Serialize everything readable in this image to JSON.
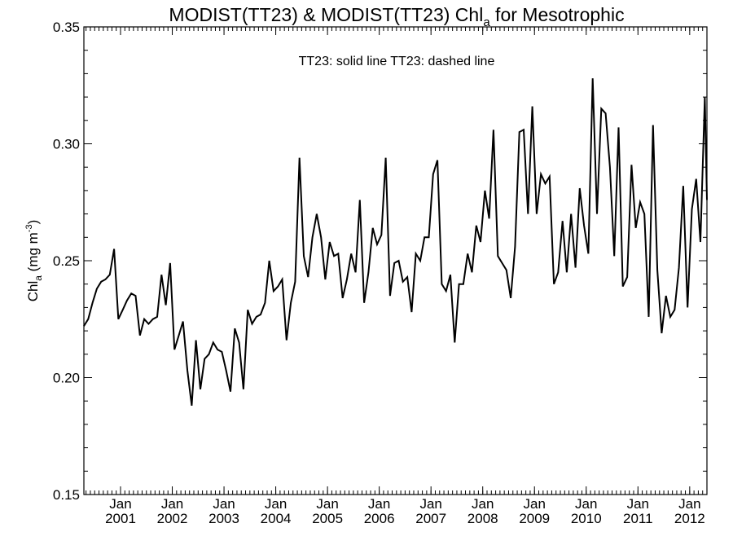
{
  "chart_data": {
    "type": "line",
    "title": {
      "prefix": "MODIST(TT23) & MODIST(TT23)  Chl",
      "subscript": "a",
      "suffix": " for Mesotrophic"
    },
    "legend_text": "TT23: solid line   TT23: dashed line",
    "ylabel": {
      "prefix": "Chl",
      "subscript": "a",
      "middle": " (mg m",
      "superscript": "-3",
      "suffix": ")"
    },
    "ylim": [
      0.15,
      0.35
    ],
    "yticks": [
      "0.15",
      "0.20",
      "0.25",
      "0.30",
      "0.35"
    ],
    "xlim": [
      2000.2917,
      2012.3333
    ],
    "xticks": [
      {
        "month": "Jan",
        "year": "2001"
      },
      {
        "month": "Jan",
        "year": "2002"
      },
      {
        "month": "Jan",
        "year": "2003"
      },
      {
        "month": "Jan",
        "year": "2004"
      },
      {
        "month": "Jan",
        "year": "2005"
      },
      {
        "month": "Jan",
        "year": "2006"
      },
      {
        "month": "Jan",
        "year": "2007"
      },
      {
        "month": "Jan",
        "year": "2008"
      },
      {
        "month": "Jan",
        "year": "2009"
      },
      {
        "month": "Jan",
        "year": "2010"
      },
      {
        "month": "Jan",
        "year": "2011"
      },
      {
        "month": "Jan",
        "year": "2012"
      }
    ],
    "series": [
      {
        "style": "solid",
        "color": "#000000",
        "x": [
          2000.29,
          2000.375,
          2000.458,
          2000.542,
          2000.625,
          2000.708,
          2000.792,
          2000.875,
          2000.958,
          2001.042,
          2001.125,
          2001.208,
          2001.292,
          2001.375,
          2001.458,
          2001.542,
          2001.625,
          2001.708,
          2001.792,
          2001.875,
          2001.958,
          2002.042,
          2002.125,
          2002.208,
          2002.292,
          2002.375,
          2002.458,
          2002.542,
          2002.625,
          2002.708,
          2002.792,
          2002.875,
          2002.958,
          2003.042,
          2003.125,
          2003.208,
          2003.292,
          2003.375,
          2003.458,
          2003.542,
          2003.625,
          2003.708,
          2003.792,
          2003.875,
          2003.958,
          2004.042,
          2004.125,
          2004.208,
          2004.292,
          2004.375,
          2004.458,
          2004.542,
          2004.625,
          2004.708,
          2004.792,
          2004.875,
          2004.958,
          2005.042,
          2005.125,
          2005.208,
          2005.292,
          2005.375,
          2005.458,
          2005.542,
          2005.625,
          2005.708,
          2005.792,
          2005.875,
          2005.958,
          2006.042,
          2006.125,
          2006.208,
          2006.292,
          2006.375,
          2006.458,
          2006.542,
          2006.625,
          2006.708,
          2006.792,
          2006.875,
          2006.958,
          2007.042,
          2007.125,
          2007.208,
          2007.292,
          2007.375,
          2007.458,
          2007.542,
          2007.625,
          2007.708,
          2007.792,
          2007.875,
          2007.958,
          2008.042,
          2008.125,
          2008.208,
          2008.292,
          2008.375,
          2008.458,
          2008.542,
          2008.625,
          2008.708,
          2008.792,
          2008.875,
          2008.958,
          2009.042,
          2009.125,
          2009.208,
          2009.292,
          2009.375,
          2009.458,
          2009.542,
          2009.625,
          2009.708,
          2009.792,
          2009.875,
          2009.958,
          2010.042,
          2010.125,
          2010.208,
          2010.292,
          2010.375,
          2010.458,
          2010.542,
          2010.625,
          2010.708,
          2010.792,
          2010.875,
          2010.958,
          2011.042,
          2011.125,
          2011.208,
          2011.292,
          2011.375,
          2011.458,
          2011.542,
          2011.625,
          2011.708,
          2011.792,
          2011.875,
          2011.958,
          2012.042,
          2012.125,
          2012.208,
          2012.292,
          2012.333
        ],
        "y": [
          0.222,
          0.225,
          0.232,
          0.238,
          0.241,
          0.242,
          0.244,
          0.255,
          0.225,
          0.229,
          0.233,
          0.236,
          0.235,
          0.218,
          0.225,
          0.223,
          0.225,
          0.226,
          0.244,
          0.231,
          0.249,
          0.212,
          0.218,
          0.224,
          0.203,
          0.188,
          0.216,
          0.195,
          0.208,
          0.21,
          0.215,
          0.212,
          0.211,
          0.203,
          0.194,
          0.221,
          0.215,
          0.195,
          0.229,
          0.223,
          0.226,
          0.227,
          0.232,
          0.25,
          0.237,
          0.239,
          0.242,
          0.216,
          0.232,
          0.241,
          0.294,
          0.252,
          0.243,
          0.26,
          0.27,
          0.26,
          0.242,
          0.258,
          0.252,
          0.253,
          0.234,
          0.242,
          0.253,
          0.245,
          0.276,
          0.232,
          0.245,
          0.264,
          0.257,
          0.261,
          0.294,
          0.235,
          0.249,
          0.25,
          0.241,
          0.243,
          0.228,
          0.253,
          0.25,
          0.26,
          0.26,
          0.287,
          0.293,
          0.24,
          0.237,
          0.244,
          0.215,
          0.24,
          0.24,
          0.253,
          0.245,
          0.265,
          0.258,
          0.28,
          0.268,
          0.306,
          0.252,
          0.249,
          0.246,
          0.234,
          0.256,
          0.305,
          0.306,
          0.27,
          0.316,
          0.27,
          0.287,
          0.283,
          0.286,
          0.24,
          0.245,
          0.267,
          0.245,
          0.27,
          0.247,
          0.281,
          0.265,
          0.253,
          0.328,
          0.27,
          0.315,
          0.313,
          0.29,
          0.252,
          0.307,
          0.239,
          0.243,
          0.291,
          0.264,
          0.275,
          0.27,
          0.226,
          0.308,
          0.246,
          0.219,
          0.235,
          0.226,
          0.229,
          0.247,
          0.282,
          0.23,
          0.272,
          0.285,
          0.258,
          0.32,
          0.276
        ]
      }
    ]
  }
}
